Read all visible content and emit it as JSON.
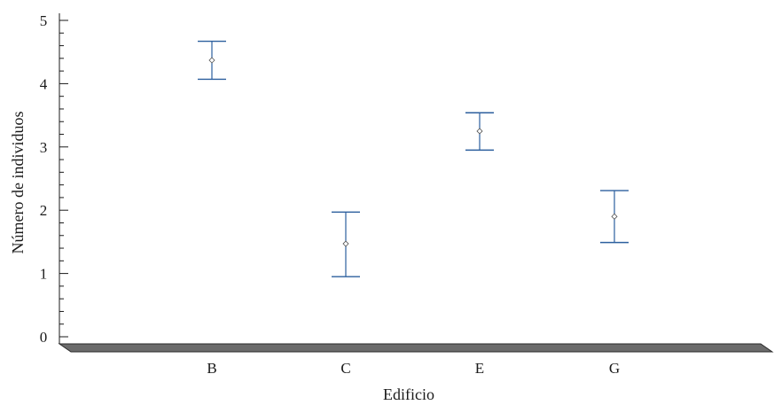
{
  "chart_data": {
    "type": "scatter",
    "subtype": "error-bar",
    "title": "",
    "xlabel": "Edificio",
    "ylabel": "Número de individuos",
    "categories": [
      "B",
      "C",
      "E",
      "G"
    ],
    "y_ticks": [
      "0",
      "1",
      "2",
      "3",
      "4",
      "5"
    ],
    "ylim": [
      0,
      5
    ],
    "series": [
      {
        "values": [
          4.37,
          1.47,
          3.25,
          1.9
        ],
        "lower": [
          4.07,
          0.95,
          2.95,
          1.49
        ],
        "upper": [
          4.67,
          1.97,
          3.54,
          2.31
        ]
      }
    ],
    "grid": false,
    "legend": "none",
    "colors": {
      "errorbar": "#2c5f9e",
      "marker": "#555555",
      "axis": "#1a1a1a",
      "floor_fill": "#6b6b6b"
    }
  }
}
